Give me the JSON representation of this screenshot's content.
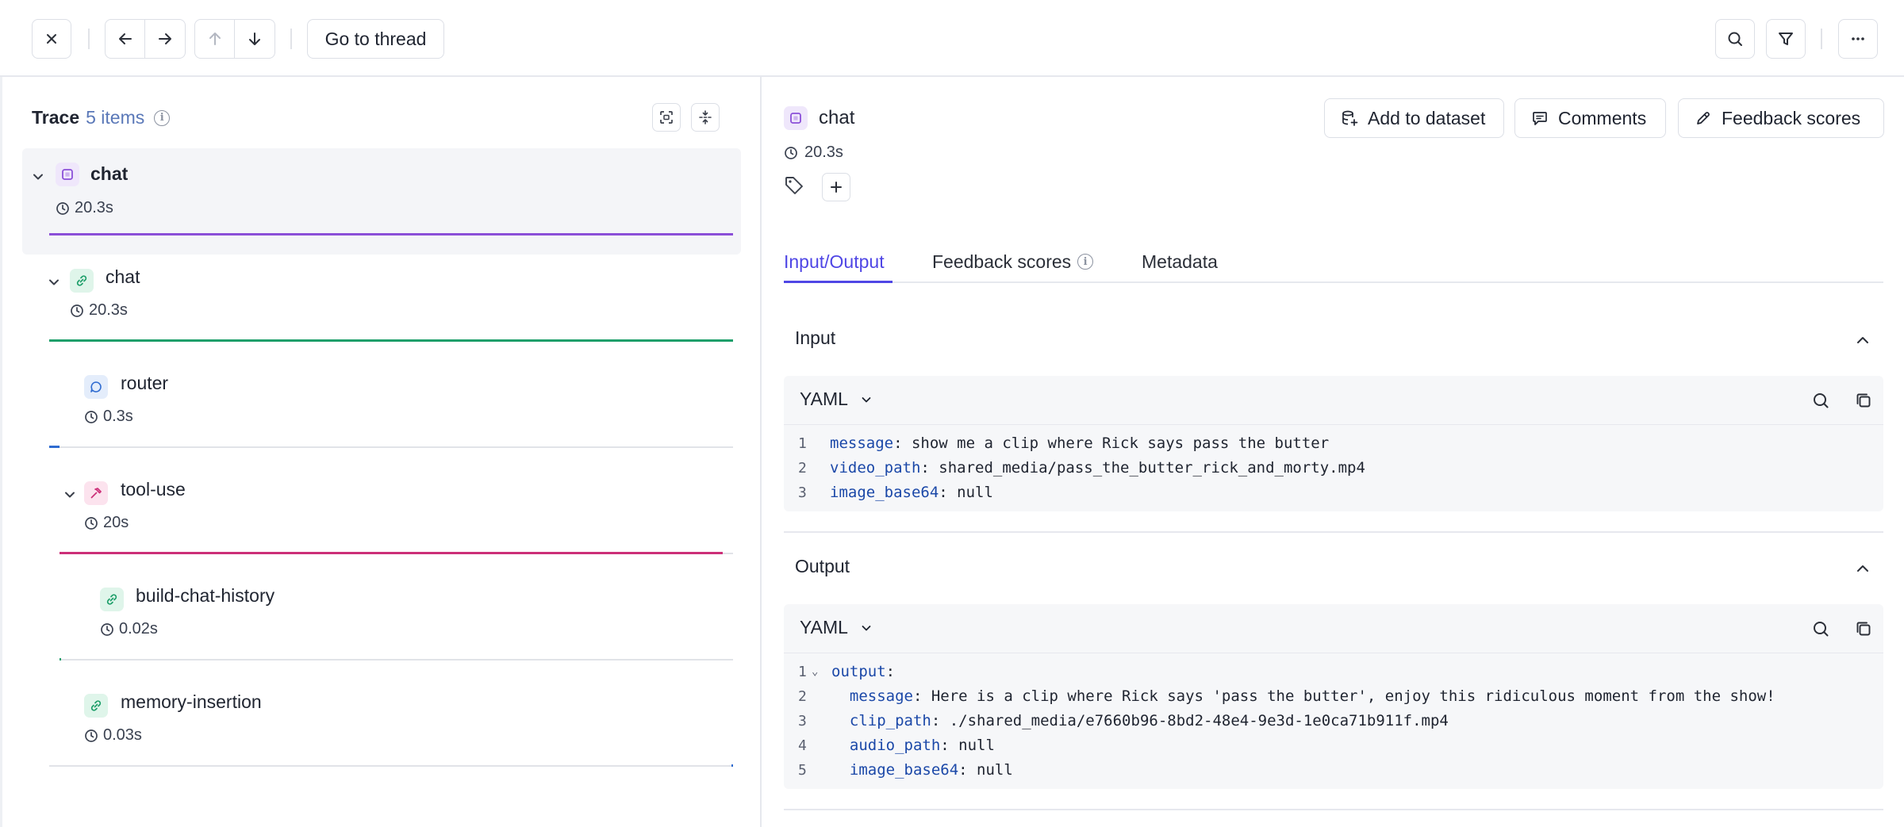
{
  "toolbar": {
    "go_to_thread_label": "Go to thread"
  },
  "trace": {
    "title": "Trace",
    "count": "5 items",
    "spans": [
      {
        "name": "chat",
        "duration": "20.3s",
        "type": "general",
        "bar_color": "#8b4fd8",
        "bar_fraction": 1.0
      },
      {
        "name": "chat",
        "duration": "20.3s",
        "type": "chain",
        "bar_color": "#1e9f6a",
        "bar_fraction": 1.0
      },
      {
        "name": "router",
        "duration": "0.3s",
        "type": "llm",
        "bar_color": "#2f6bd0",
        "bar_fraction": 0.015
      },
      {
        "name": "tool-use",
        "duration": "20s",
        "type": "tool",
        "bar_color": "#cc2f78",
        "bar_fraction": 0.985
      },
      {
        "name": "build-chat-history",
        "duration": "0.02s",
        "type": "chain",
        "bar_color": "#1e9f6a",
        "bar_fraction": 0.001
      },
      {
        "name": "memory-insertion",
        "duration": "0.03s",
        "type": "chain",
        "bar_color": "#2f6bd0",
        "bar_fraction": 0.001
      }
    ]
  },
  "detail": {
    "title": "chat",
    "duration": "20.3s",
    "actions": {
      "add_to_dataset": "Add to dataset",
      "comments": "Comments",
      "feedback_scores": "Feedback scores"
    },
    "tabs": [
      "Input/Output",
      "Feedback scores",
      "Metadata"
    ],
    "input": {
      "label": "Input",
      "format": "YAML",
      "lines": [
        {
          "num": "1",
          "key": "message",
          "value": ": show me a clip where Rick says pass the butter"
        },
        {
          "num": "2",
          "key": "video_path",
          "value": ": shared_media/pass_the_butter_rick_and_morty.mp4"
        },
        {
          "num": "3",
          "key": "image_base64",
          "value": ": null"
        }
      ]
    },
    "output": {
      "label": "Output",
      "format": "YAML",
      "lines": [
        {
          "num": "1",
          "key": "output",
          "value": ":"
        },
        {
          "num": "2",
          "key": "  message",
          "value": ": Here is a clip where Rick says 'pass the butter', enjoy this ridiculous moment from the show!"
        },
        {
          "num": "3",
          "key": "  clip_path",
          "value": ": ./shared_media/e7660b96-8bd2-48e4-9e3d-1e0ca71b911f.mp4"
        },
        {
          "num": "4",
          "key": "  audio_path",
          "value": ": null"
        },
        {
          "num": "5",
          "key": "  image_base64",
          "value": ": null"
        }
      ]
    }
  },
  "colors": {
    "accent": "#4f46e5",
    "border": "#dcdfe6",
    "code_key": "#1b48a8"
  }
}
